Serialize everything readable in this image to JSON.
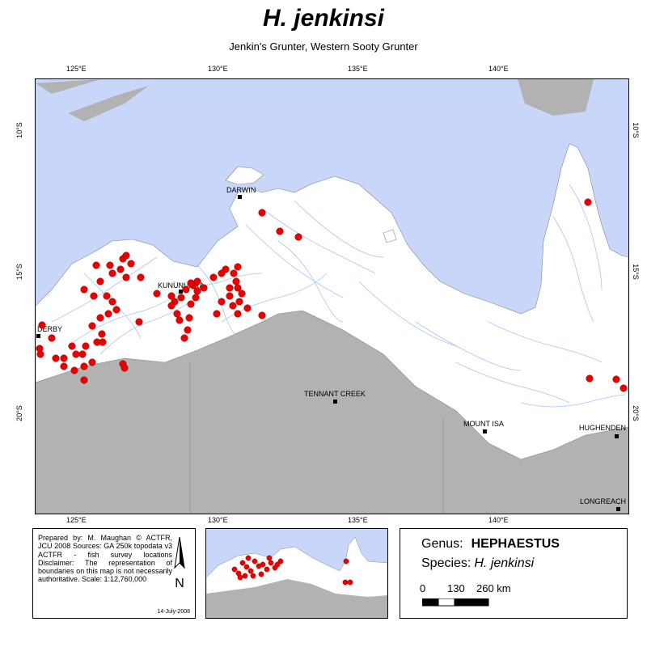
{
  "title": "H. jenkinsi",
  "subtitle": "Jenkin's Grunter, Western Sooty Grunter",
  "map": {
    "longitude_ticks": [
      "125°E",
      "130°E",
      "135°E",
      "140°E"
    ],
    "latitude_ticks": [
      "10°S",
      "15°S",
      "20°S"
    ],
    "towns": [
      "DARWIN",
      "KUNUNURRA",
      "DERBY",
      "TENNANT CREEK",
      "MOUNT ISA",
      "HUGHENDEN",
      "LONGREACH"
    ]
  },
  "info": {
    "prepared": "Prepared by: M. Maughan © ACTFR, JCU 2008 Sources: GA 250k topodata v3 ACTFR - fish survey locations Disclaimer: The representation of boundaries on this map is not necessarily authoritative. Scale: 1:12,760,000",
    "date": "14-July-2008",
    "north_arrow_letter": "N"
  },
  "legend": {
    "genus_label": "Genus:",
    "genus_value": "HEPHAESTUS",
    "species_label": "Species:",
    "species_value": "H. jenkinsi",
    "scale_labels": [
      "0",
      "130",
      "260 km"
    ]
  },
  "colors": {
    "sea": "#c8d6fa",
    "land": "#ffffff",
    "outside_area": "#b2b2b2",
    "rivers": "#a9c4f5",
    "records": "#e60000"
  }
}
